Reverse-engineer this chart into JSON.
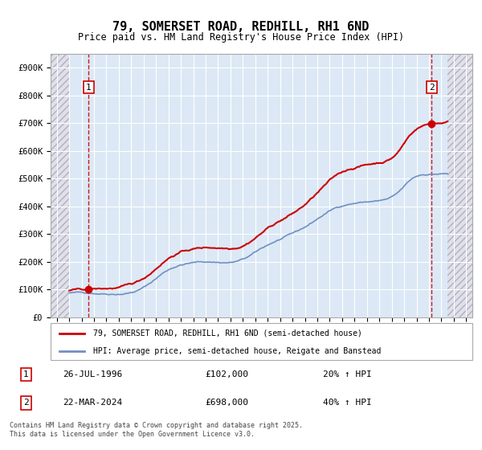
{
  "title": "79, SOMERSET ROAD, REDHILL, RH1 6ND",
  "subtitle": "Price paid vs. HM Land Registry's House Price Index (HPI)",
  "legend_line1": "79, SOMERSET ROAD, REDHILL, RH1 6ND (semi-detached house)",
  "legend_line2": "HPI: Average price, semi-detached house, Reigate and Banstead",
  "annotation1_date": "26-JUL-1996",
  "annotation1_price": "£102,000",
  "annotation1_hpi": "20% ↑ HPI",
  "annotation2_date": "22-MAR-2024",
  "annotation2_price": "£698,000",
  "annotation2_hpi": "40% ↑ HPI",
  "footer": "Contains HM Land Registry data © Crown copyright and database right 2025.\nThis data is licensed under the Open Government Licence v3.0.",
  "ylim": [
    0,
    950000
  ],
  "xlim_year": [
    1993.5,
    2027.5
  ],
  "hatch_color": "#b0b0c0",
  "plot_bg": "#dce8f5",
  "grid_color": "#ffffff",
  "red_line_color": "#cc0000",
  "blue_line_color": "#7090c0",
  "hatch_bg": "#e0e0ea",
  "sale1_x": 1996.57,
  "sale1_y": 102000,
  "sale2_x": 2024.22,
  "sale2_y": 698000
}
